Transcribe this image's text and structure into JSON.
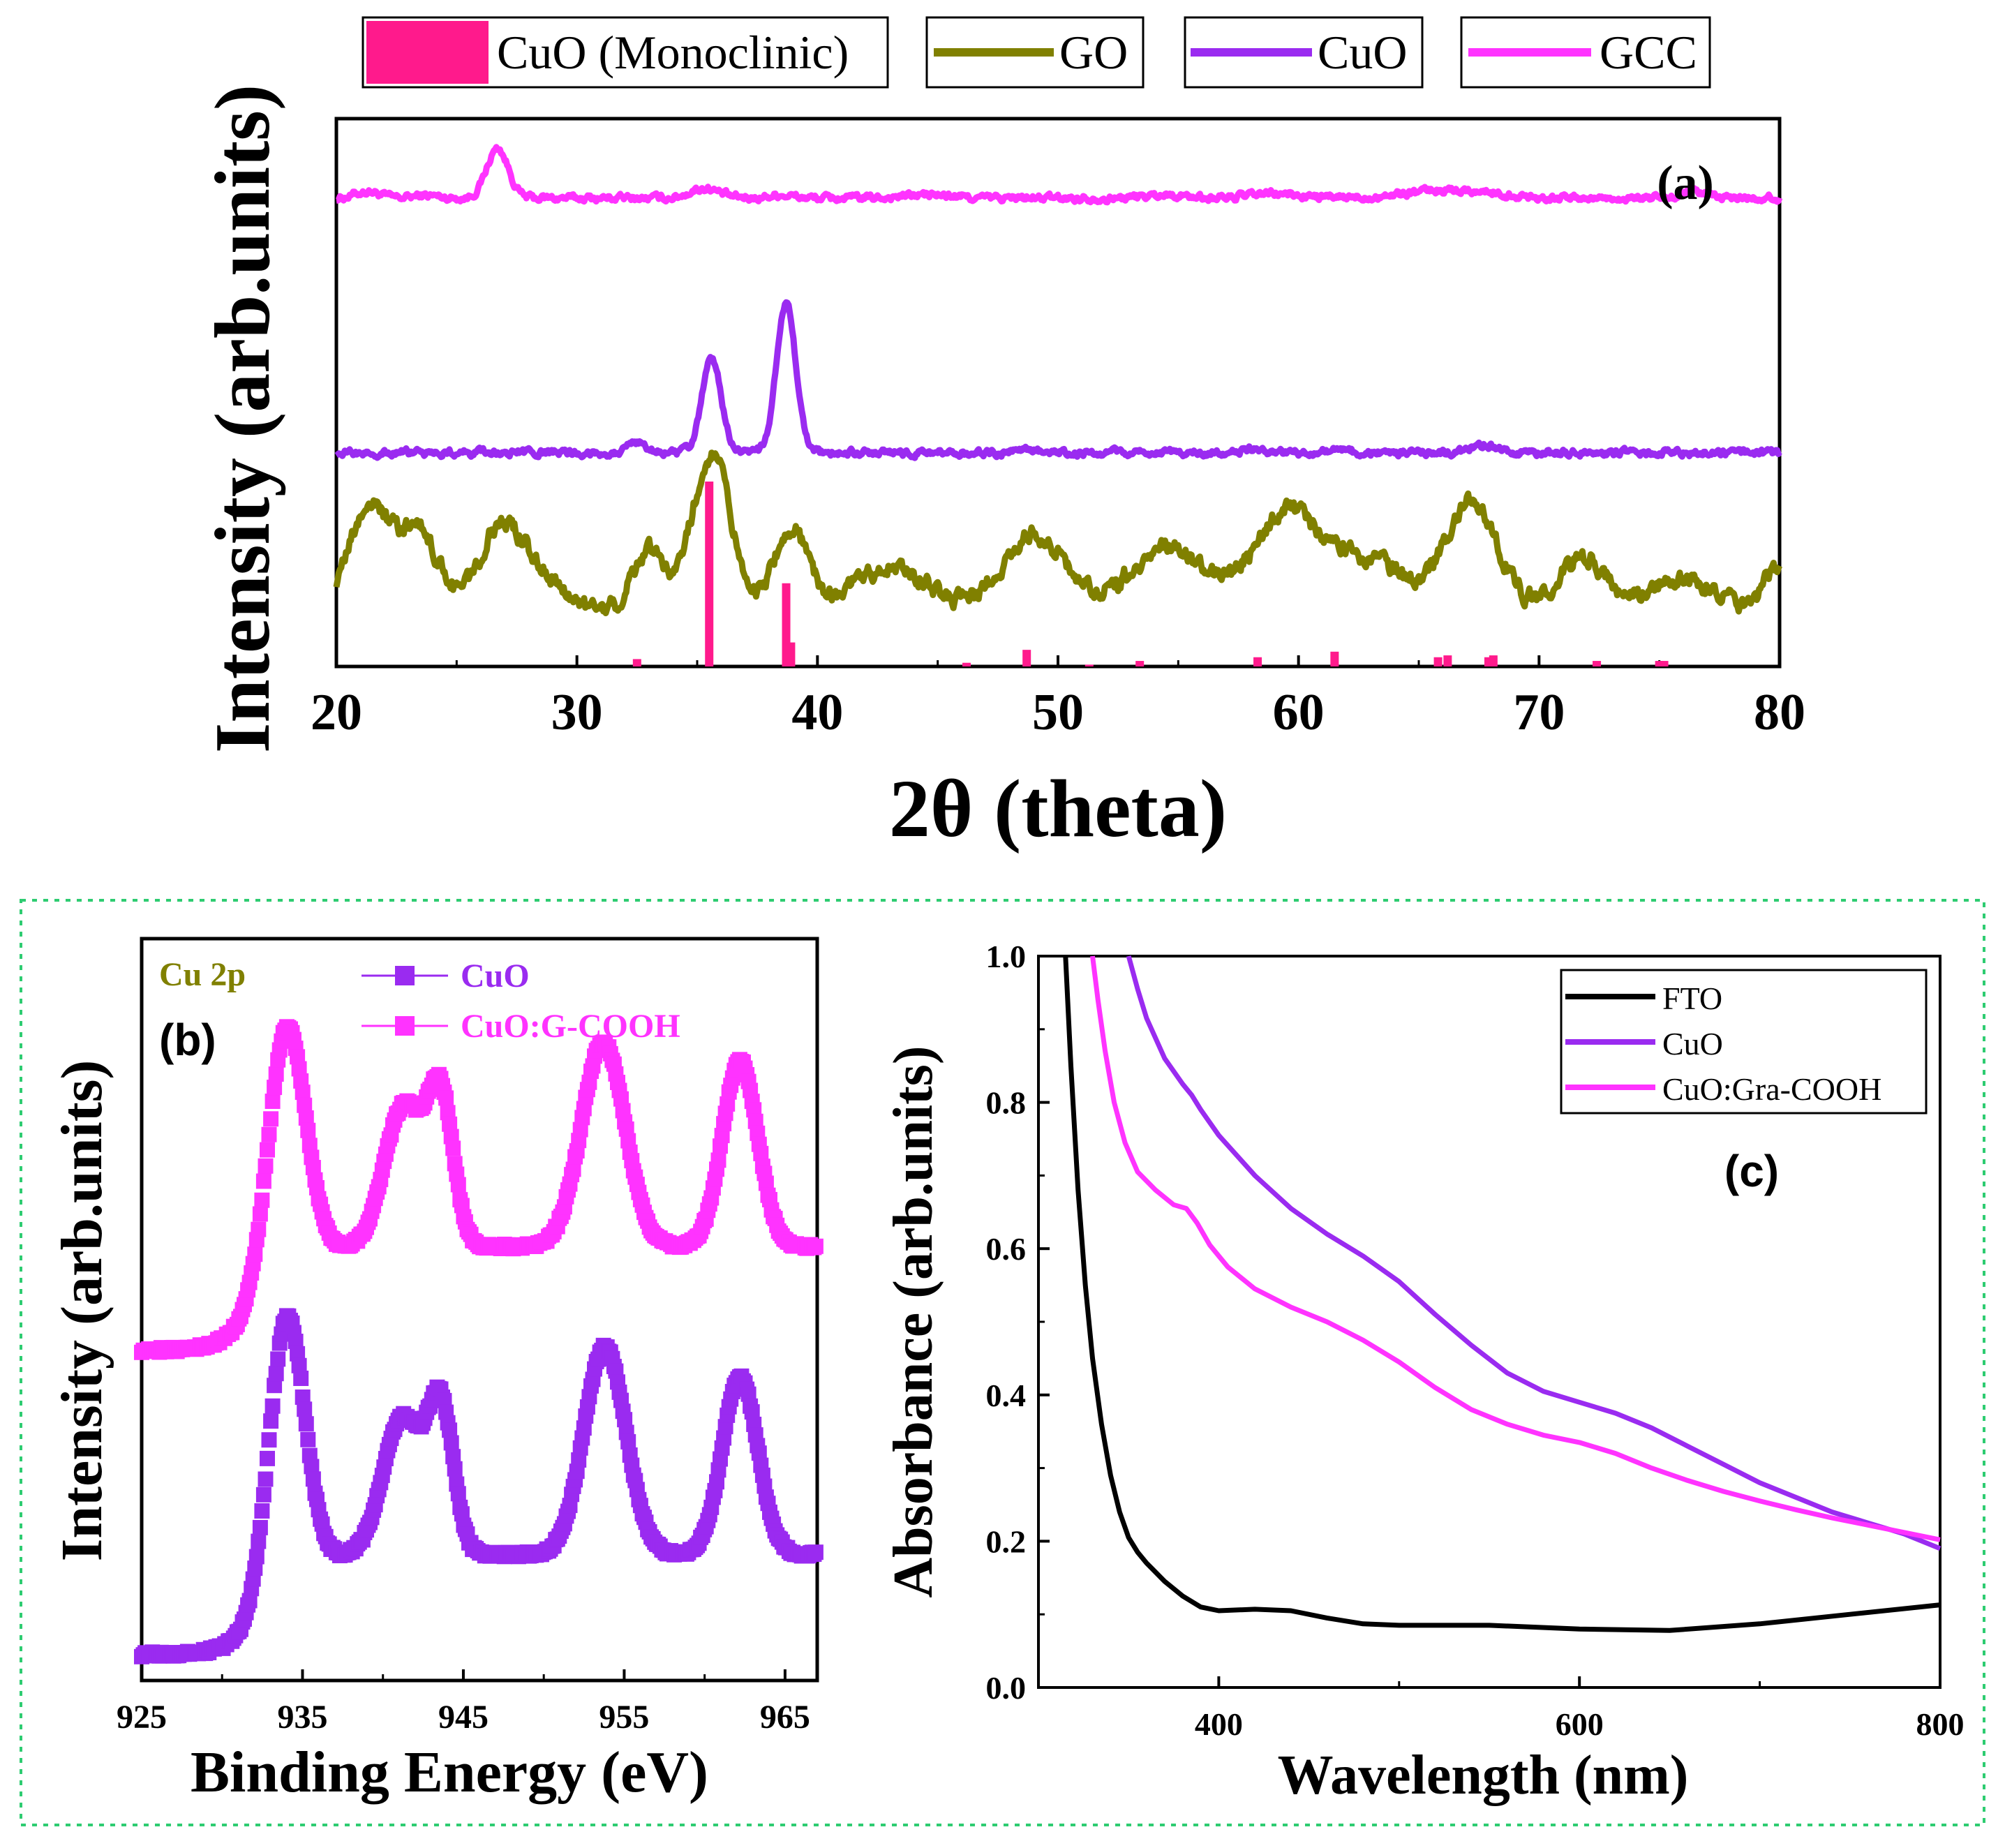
{
  "figure": "CuO / GO / GCC characterization figure",
  "chart_data": [
    {
      "id": "a",
      "type": "line",
      "panel_label": "(a)",
      "xlabel": "2θ (theta)",
      "ylabel": "Intensity (arb.units)",
      "xlim": [
        20,
        80
      ],
      "ylim": [
        0,
        10
      ],
      "xticks": [
        20,
        30,
        40,
        50,
        60,
        70,
        80
      ],
      "legend_position": "top, outside the axes",
      "legend": [
        {
          "label": "CuO (Monoclinic)",
          "kind": "bar",
          "color": "#ff1a8c"
        },
        {
          "label": "GO",
          "kind": "line",
          "color": "#808000"
        },
        {
          "label": "CuO",
          "kind": "line",
          "color": "#9a2bf0"
        },
        {
          "label": "GCC",
          "kind": "line",
          "color": "#ff33ff"
        }
      ],
      "reference_sticks": {
        "name": "CuO (Monoclinic)",
        "color": "#ff1a8c",
        "x": [
          32.5,
          35.5,
          38.7,
          38.9,
          46.2,
          48.7,
          51.3,
          53.4,
          58.3,
          61.5,
          65.8,
          66.2,
          67.9,
          68.1,
          72.4,
          75.0,
          75.2
        ],
        "y": [
          0.04,
          1.0,
          0.45,
          0.13,
          0.02,
          0.09,
          0.01,
          0.03,
          0.05,
          0.08,
          0.05,
          0.06,
          0.05,
          0.06,
          0.03,
          0.03,
          0.03
        ]
      },
      "series": [
        {
          "name": "GCC",
          "color": "#ff33ff",
          "baseline": 8.55,
          "noise": 0.05,
          "peaks": [
            [
              21.3,
              0.12,
              0.5
            ],
            [
              23.7,
              0.05,
              0.5
            ],
            [
              26.7,
              0.9,
              0.45
            ],
            [
              35.3,
              0.18,
              0.6
            ],
            [
              38.5,
              0.06,
              0.5
            ],
            [
              44.5,
              0.06,
              1.0
            ],
            [
              54.5,
              0.06,
              0.8
            ],
            [
              59.0,
              0.08,
              1.0
            ],
            [
              66.3,
              0.15,
              1.8
            ],
            [
              76.5,
              0.1,
              0.4
            ]
          ]
        },
        {
          "name": "CuO",
          "color": "#9a2bf0",
          "baseline": 3.9,
          "noise": 0.05,
          "peaks": [
            [
              32.5,
              0.2,
              0.35
            ],
            [
              35.6,
              1.7,
              0.4
            ],
            [
              38.7,
              2.7,
              0.4
            ],
            [
              48.8,
              0.05,
              0.5
            ],
            [
              58.0,
              0.05,
              0.6
            ],
            [
              61.6,
              0.05,
              0.5
            ],
            [
              67.8,
              0.15,
              0.6
            ]
          ]
        },
        {
          "name": "GO",
          "color": "#808000",
          "baseline": 1.0,
          "noise": 0.12,
          "peaks": [
            [
              21.4,
              1.9,
              0.9
            ],
            [
              23.5,
              1.4,
              0.8
            ],
            [
              26.8,
              1.5,
              0.9
            ],
            [
              28.5,
              0.6,
              1.0
            ],
            [
              33.0,
              1.1,
              0.7
            ],
            [
              35.6,
              2.9,
              0.8
            ],
            [
              38.9,
              1.5,
              0.7
            ],
            [
              43.0,
              0.8,
              1.6
            ],
            [
              49.0,
              1.4,
              1.3
            ],
            [
              54.5,
              1.2,
              1.5
            ],
            [
              59.5,
              1.8,
              1.4
            ],
            [
              63.0,
              0.9,
              1.5
            ],
            [
              67.2,
              2.0,
              1.1
            ],
            [
              71.8,
              1.0,
              1.0
            ],
            [
              76.0,
              0.6,
              1.4
            ],
            [
              80.0,
              0.8,
              0.6
            ]
          ]
        }
      ]
    },
    {
      "id": "b",
      "type": "line",
      "panel_label": "(b)",
      "annotation": "Cu 2p",
      "xlabel": "Binding Energy (eV)",
      "ylabel": "Intensity (arb.units)",
      "xlim": [
        925,
        967
      ],
      "ylim": [
        0,
        10
      ],
      "xticks": [
        925,
        935,
        945,
        955,
        965
      ],
      "legend_position": "top-center, inside the axes",
      "legend": [
        {
          "label": "CuO",
          "color": "#9a2bf0"
        },
        {
          "label": "CuO:G-COOH",
          "color": "#ff33ff"
        }
      ],
      "series": [
        {
          "name": "CuO",
          "color": "#9a2bf0",
          "baseline": 0.35,
          "baseline_high": 1.7,
          "step_center": 933.0,
          "step_width": 1.2,
          "peaks": [
            [
              934.0,
              3.6,
              1.1
            ],
            [
              941.2,
              1.85,
              1.2
            ],
            [
              943.6,
              1.95,
              0.8
            ],
            [
              953.8,
              2.8,
              1.3
            ],
            [
              962.2,
              2.4,
              1.1
            ]
          ]
        },
        {
          "name": "CuO:G-COOH",
          "color": "#ff33ff",
          "baseline": 4.45,
          "baseline_high": 5.85,
          "step_center": 932.6,
          "step_width": 1.2,
          "peaks": [
            [
              934.0,
              3.3,
              1.15
            ],
            [
              941.3,
              1.9,
              1.2
            ],
            [
              943.6,
              1.95,
              0.8
            ],
            [
              953.7,
              2.75,
              1.35
            ],
            [
              962.2,
              2.5,
              1.1
            ]
          ]
        }
      ]
    },
    {
      "id": "c",
      "type": "line",
      "panel_label": "(c)",
      "xlabel": "Wavelength (nm)",
      "ylabel": "Absorbance (arb.units)",
      "xlim": [
        300,
        800
      ],
      "ylim": [
        0.0,
        1.0
      ],
      "xticks": [
        400,
        600,
        800
      ],
      "yticks": [
        "0.0",
        "0.2",
        "0.4",
        "0.6",
        "0.8",
        "1.0"
      ],
      "legend_position": "top-right",
      "legend": [
        {
          "label": "FTO",
          "color": "#000000"
        },
        {
          "label": "CuO",
          "color": "#9a2bf0"
        },
        {
          "label": "CuO:Gra-COOH",
          "color": "#ff33ff"
        }
      ],
      "series": [
        {
          "name": "FTO",
          "color": "#000000",
          "x": [
            315,
            318,
            322,
            326,
            330,
            335,
            340,
            345,
            350,
            355,
            360,
            370,
            380,
            390,
            400,
            420,
            440,
            460,
            480,
            500,
            550,
            600,
            650,
            700,
            750,
            800
          ],
          "y": [
            1.0,
            0.85,
            0.68,
            0.55,
            0.45,
            0.36,
            0.29,
            0.24,
            0.205,
            0.185,
            0.17,
            0.145,
            0.125,
            0.11,
            0.105,
            0.107,
            0.105,
            0.095,
            0.087,
            0.085,
            0.085,
            0.08,
            0.078,
            0.087,
            0.1,
            0.113
          ]
        },
        {
          "name": "CuO",
          "color": "#9a2bf0",
          "x": [
            350,
            355,
            360,
            370,
            380,
            385,
            390,
            400,
            420,
            440,
            460,
            480,
            500,
            520,
            540,
            560,
            580,
            600,
            620,
            640,
            660,
            680,
            700,
            720,
            740,
            760,
            780,
            800
          ],
          "y": [
            1.0,
            0.955,
            0.915,
            0.86,
            0.825,
            0.81,
            0.79,
            0.755,
            0.7,
            0.655,
            0.62,
            0.59,
            0.555,
            0.51,
            0.468,
            0.43,
            0.405,
            0.39,
            0.375,
            0.355,
            0.33,
            0.305,
            0.28,
            0.26,
            0.24,
            0.225,
            0.21,
            0.19
          ]
        },
        {
          "name": "CuO:Gra-COOH",
          "color": "#ff33ff",
          "x": [
            330,
            333,
            337,
            342,
            348,
            355,
            365,
            375,
            382,
            388,
            395,
            405,
            420,
            440,
            460,
            480,
            500,
            520,
            540,
            560,
            580,
            600,
            620,
            640,
            660,
            680,
            700,
            720,
            740,
            760,
            780,
            800
          ],
          "y": [
            1.0,
            0.94,
            0.87,
            0.8,
            0.745,
            0.705,
            0.68,
            0.66,
            0.655,
            0.635,
            0.605,
            0.575,
            0.545,
            0.52,
            0.5,
            0.475,
            0.445,
            0.41,
            0.38,
            0.36,
            0.345,
            0.335,
            0.32,
            0.3,
            0.283,
            0.268,
            0.255,
            0.243,
            0.232,
            0.222,
            0.212,
            0.202
          ]
        }
      ]
    }
  ]
}
